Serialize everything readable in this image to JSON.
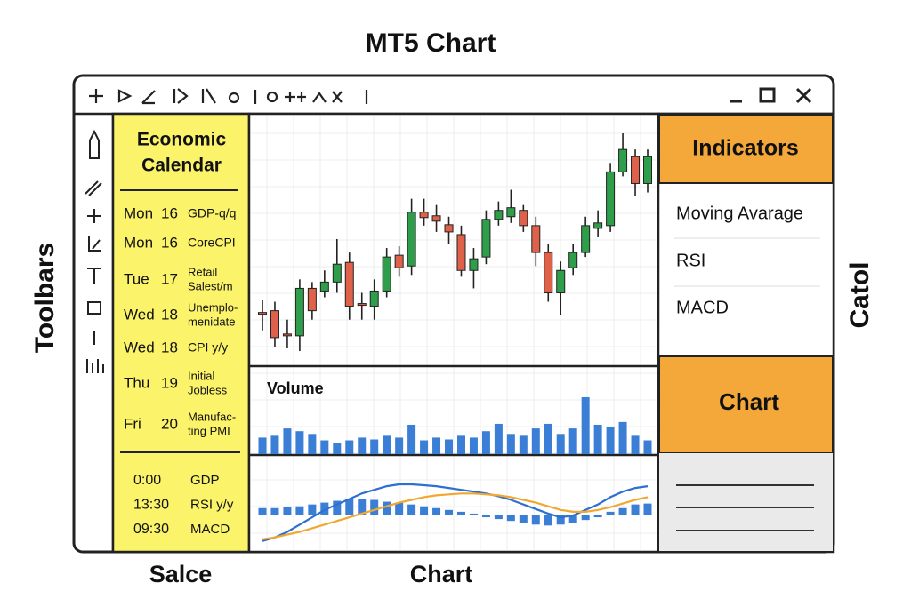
{
  "title": "MT5 Chart",
  "left_label": "Toolbars",
  "right_label": "Catol",
  "bottom_labels": [
    "Salce",
    "Chart"
  ],
  "calendar": {
    "title": [
      "Economic",
      "Calendar"
    ],
    "rows": [
      {
        "day": "Mon",
        "date": "16",
        "event": [
          "GDP-q/q"
        ]
      },
      {
        "day": "Mon",
        "date": "16",
        "event": [
          "CoreCPI"
        ]
      },
      {
        "day": "Tue",
        "date": "17",
        "event": [
          "Retail",
          "Salest/m"
        ]
      },
      {
        "day": "Wed",
        "date": "18",
        "event": [
          "Unemplo-",
          "menidate"
        ]
      },
      {
        "day": "Wed",
        "date": "18",
        "event": [
          "CPI y/y"
        ]
      },
      {
        "day": "Thu",
        "date": "19",
        "event": [
          "Initial",
          "Jobless"
        ]
      },
      {
        "day": "Fri",
        "date": "20",
        "event": [
          "Manufac-",
          "ting PMI"
        ]
      }
    ],
    "times": [
      {
        "time": "0:00",
        "event": "GDP"
      },
      {
        "time": "13:30",
        "event": "RSI y/y"
      },
      {
        "time": "09:30",
        "event": "MACD"
      }
    ]
  },
  "chart": {
    "candles": [
      [
        48,
        62,
        28,
        46
      ],
      [
        50,
        60,
        10,
        20
      ],
      [
        24,
        40,
        8,
        22
      ],
      [
        22,
        85,
        5,
        75
      ],
      [
        75,
        82,
        40,
        50
      ],
      [
        72,
        95,
        65,
        82
      ],
      [
        82,
        130,
        70,
        102
      ],
      [
        104,
        115,
        40,
        55
      ],
      [
        58,
        70,
        40,
        56
      ],
      [
        55,
        85,
        40,
        72
      ],
      [
        72,
        120,
        65,
        110
      ],
      [
        112,
        122,
        88,
        98
      ],
      [
        100,
        175,
        90,
        160
      ],
      [
        160,
        175,
        145,
        154
      ],
      [
        156,
        168,
        138,
        150
      ],
      [
        146,
        155,
        125,
        138
      ],
      [
        135,
        145,
        88,
        95
      ],
      [
        95,
        120,
        75,
        108
      ],
      [
        110,
        162,
        102,
        152
      ],
      [
        152,
        172,
        145,
        162
      ],
      [
        155,
        185,
        148,
        165
      ],
      [
        162,
        168,
        138,
        145
      ],
      [
        145,
        155,
        100,
        115
      ],
      [
        115,
        125,
        60,
        70
      ],
      [
        70,
        105,
        45,
        95
      ],
      [
        98,
        125,
        90,
        115
      ],
      [
        115,
        155,
        110,
        145
      ],
      [
        142,
        162,
        132,
        148
      ],
      [
        145,
        215,
        138,
        205
      ],
      [
        205,
        248,
        200,
        230
      ],
      [
        222,
        230,
        178,
        192
      ],
      [
        192,
        230,
        182,
        222
      ]
    ],
    "up_color": "#2e9e4a",
    "down_color": "#e0614a",
    "volume_label": "Volume",
    "volume": [
      18,
      20,
      28,
      25,
      22,
      15,
      12,
      15,
      18,
      16,
      20,
      18,
      32,
      15,
      18,
      16,
      20,
      18,
      25,
      33,
      22,
      20,
      28,
      33,
      22,
      28,
      62,
      32,
      30,
      35,
      20,
      15
    ],
    "macd_hist": [
      8,
      8,
      9,
      10,
      12,
      14,
      16,
      18,
      18,
      17,
      15,
      14,
      12,
      10,
      8,
      6,
      4,
      2,
      -2,
      -4,
      -6,
      -8,
      -10,
      -11,
      -10,
      -8,
      -5,
      -2,
      4,
      8,
      12,
      13
    ],
    "macd_line": [
      -28,
      -24,
      -18,
      -10,
      -2,
      6,
      12,
      18,
      24,
      28,
      32,
      34,
      34,
      33,
      32,
      30,
      28,
      26,
      24,
      21,
      17,
      12,
      7,
      2,
      -2,
      0,
      6,
      12,
      20,
      26,
      30,
      32
    ],
    "signal_line": [
      -26,
      -24,
      -21,
      -18,
      -14,
      -10,
      -6,
      -2,
      2,
      6,
      10,
      14,
      17,
      20,
      22,
      23,
      24,
      24,
      23,
      22,
      20,
      17,
      14,
      10,
      6,
      4,
      4,
      6,
      9,
      13,
      17,
      20
    ],
    "bar_color": "#3a7fd5",
    "line_color": "#2f6fd0",
    "signal_color": "#f0a830"
  },
  "panel": {
    "header": "Indicators",
    "items": [
      "Moving Avarage",
      "RSI",
      "MACD"
    ],
    "button": "Chart"
  }
}
